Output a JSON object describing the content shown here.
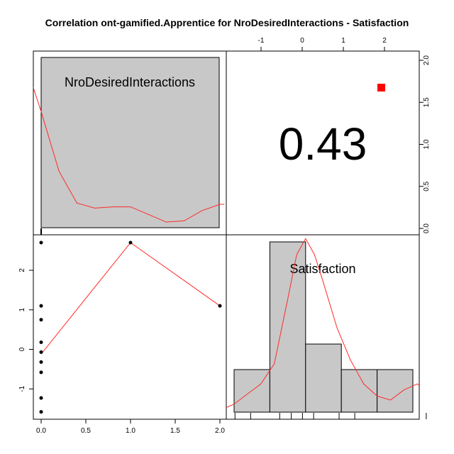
{
  "chart_data": {
    "type": "scatter",
    "title": "Correlation ont-gamified.Apprentice for NroDesiredInteractions - Satisfaction",
    "variables": [
      "NroDesiredInteractions",
      "Satisfaction"
    ],
    "colors": {
      "curve": "#ff2a2a",
      "hist_fill": "#c8c8c8",
      "star_box": "#ff0000",
      "points": "#000000"
    },
    "nro_histogram": {
      "bin_edges": [
        0,
        2
      ],
      "counts": [
        1
      ]
    },
    "nro_density": {
      "x": [
        -0.2,
        0.0,
        0.2,
        0.4,
        0.6,
        0.8,
        1.0,
        1.2,
        1.4,
        1.6,
        1.8,
        2.0,
        2.05
      ],
      "y": [
        1.35,
        0.92,
        0.45,
        0.2,
        0.16,
        0.17,
        0.17,
        0.11,
        0.05,
        0.06,
        0.14,
        0.19,
        0.19
      ]
    },
    "top_axis": {
      "ticks": [
        -1,
        0,
        1,
        2
      ],
      "tick_labels": [
        "-1",
        "0",
        "1",
        "2"
      ]
    },
    "right_axis": {
      "ticks": [
        0.0,
        0.5,
        1.0,
        1.5,
        2.0
      ],
      "tick_labels": [
        "0.0",
        "0.5",
        "1.0",
        "1.5",
        "2.0"
      ]
    },
    "bottom_axis": {
      "ticks": [
        0.0,
        0.5,
        1.0,
        1.5,
        2.0
      ],
      "tick_labels": [
        "0.0",
        "0.5",
        "1.0",
        "1.5",
        "2.0"
      ]
    },
    "left_axis": {
      "ticks": [
        -1,
        0,
        1,
        2
      ],
      "tick_labels": [
        "-1",
        "0",
        "1",
        "2"
      ]
    },
    "correlation": "0.43",
    "significance_marker": "red-square",
    "scatter_points": [
      {
        "x": 0,
        "y": 2.7
      },
      {
        "x": 0,
        "y": 1.1
      },
      {
        "x": 0,
        "y": 0.75
      },
      {
        "x": 0,
        "y": 0.18
      },
      {
        "x": 0,
        "y": -0.07
      },
      {
        "x": 0,
        "y": -0.32
      },
      {
        "x": 0,
        "y": -0.58
      },
      {
        "x": 0,
        "y": -1.23
      },
      {
        "x": 0,
        "y": -1.58
      },
      {
        "x": 1,
        "y": 2.7
      },
      {
        "x": 2,
        "y": 1.1
      }
    ],
    "loess_line": [
      {
        "x": 0,
        "y": -0.12
      },
      {
        "x": 1,
        "y": 2.7
      },
      {
        "x": 2,
        "y": 1.1
      }
    ],
    "sat_histogram": {
      "bin_edges": [
        -1.6,
        -0.8,
        0.0,
        0.8,
        1.6,
        2.4
      ],
      "counts": [
        1,
        4,
        1.6,
        1,
        1
      ]
    },
    "sat_density": {
      "x": [
        -1.9,
        -1.6,
        -1.3,
        -1.0,
        -0.7,
        -0.4,
        -0.2,
        0.0,
        0.2,
        0.4,
        0.7,
        1.0,
        1.3,
        1.6,
        1.9,
        2.2,
        2.5,
        2.8,
        3.0
      ],
      "y": [
        0.05,
        0.2,
        0.45,
        0.7,
        1.2,
        2.8,
        3.9,
        4.3,
        3.9,
        3.2,
        2.1,
        1.3,
        0.7,
        0.4,
        0.3,
        0.55,
        0.7,
        0.4,
        0.15
      ]
    },
    "sat_rug": [
      -1.58,
      -1.23,
      -0.58,
      -0.32,
      -0.07,
      0.18,
      0.75,
      1.1,
      2.7
    ]
  }
}
